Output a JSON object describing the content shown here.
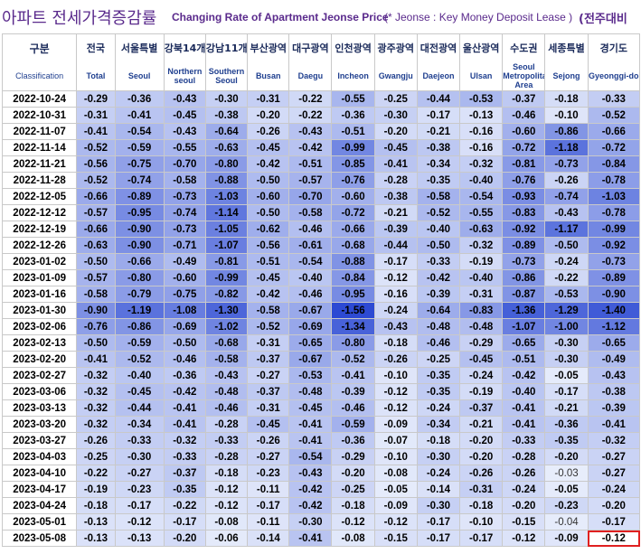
{
  "title": {
    "korean": "아파트 전세가격증감률",
    "english": "Changing Rate of Apartment Jeonse Price",
    "note": "(* Jeonse : Key Money Deposit Lease )",
    "right": "(전주대비"
  },
  "corner": {
    "korean": "구분",
    "english": "Classification"
  },
  "columns": [
    {
      "kor": "전국",
      "eng": "Total"
    },
    {
      "kor": "서울특별",
      "eng": "Seoul"
    },
    {
      "kor": "강북14개",
      "eng": "Northern seoul"
    },
    {
      "kor": "강남11개",
      "eng": "Southern Seoul"
    },
    {
      "kor": "부산광역",
      "eng": "Busan"
    },
    {
      "kor": "대구광역",
      "eng": "Daegu"
    },
    {
      "kor": "인천광역",
      "eng": "Incheon"
    },
    {
      "kor": "광주광역",
      "eng": "Gwangju"
    },
    {
      "kor": "대전광역",
      "eng": "Daejeon"
    },
    {
      "kor": "울산광역",
      "eng": "Ulsan"
    },
    {
      "kor": "수도권",
      "eng": "Seoul Metropolitan Area"
    },
    {
      "kor": "세종특별",
      "eng": "Sejong"
    },
    {
      "kor": "경기도",
      "eng": "Gyeonggi-do"
    }
  ],
  "rows": [
    {
      "date": "2022-10-24",
      "values": [
        "-0.29",
        "-0.36",
        "-0.43",
        "-0.30",
        "-0.31",
        "-0.22",
        "-0.55",
        "-0.25",
        "-0.44",
        "-0.53",
        "-0.37",
        "-0.18",
        "-0.33"
      ]
    },
    {
      "date": "2022-10-31",
      "values": [
        "-0.31",
        "-0.41",
        "-0.45",
        "-0.38",
        "-0.20",
        "-0.22",
        "-0.36",
        "-0.30",
        "-0.17",
        "-0.13",
        "-0.46",
        "-0.10",
        "-0.52"
      ]
    },
    {
      "date": "2022-11-07",
      "values": [
        "-0.41",
        "-0.54",
        "-0.43",
        "-0.64",
        "-0.26",
        "-0.43",
        "-0.51",
        "-0.20",
        "-0.21",
        "-0.16",
        "-0.60",
        "-0.86",
        "-0.66"
      ]
    },
    {
      "date": "2022-11-14",
      "values": [
        "-0.52",
        "-0.59",
        "-0.55",
        "-0.63",
        "-0.45",
        "-0.42",
        "-0.99",
        "-0.45",
        "-0.38",
        "-0.16",
        "-0.72",
        "-1.18",
        "-0.72"
      ]
    },
    {
      "date": "2022-11-21",
      "values": [
        "-0.56",
        "-0.75",
        "-0.70",
        "-0.80",
        "-0.42",
        "-0.51",
        "-0.85",
        "-0.41",
        "-0.34",
        "-0.32",
        "-0.81",
        "-0.73",
        "-0.84"
      ]
    },
    {
      "date": "2022-11-28",
      "values": [
        "-0.52",
        "-0.74",
        "-0.58",
        "-0.88",
        "-0.50",
        "-0.57",
        "-0.76",
        "-0.28",
        "-0.35",
        "-0.40",
        "-0.76",
        "-0.26",
        "-0.78"
      ]
    },
    {
      "date": "2022-12-05",
      "values": [
        "-0.66",
        "-0.89",
        "-0.73",
        "-1.03",
        "-0.60",
        "-0.70",
        "-0.60",
        "-0.38",
        "-0.58",
        "-0.54",
        "-0.93",
        "-0.74",
        "-1.03"
      ]
    },
    {
      "date": "2022-12-12",
      "values": [
        "-0.57",
        "-0.95",
        "-0.74",
        "-1.14",
        "-0.50",
        "-0.58",
        "-0.72",
        "-0.21",
        "-0.52",
        "-0.55",
        "-0.83",
        "-0.43",
        "-0.78"
      ]
    },
    {
      "date": "2022-12-19",
      "values": [
        "-0.66",
        "-0.90",
        "-0.73",
        "-1.05",
        "-0.62",
        "-0.46",
        "-0.66",
        "-0.39",
        "-0.40",
        "-0.63",
        "-0.92",
        "-1.17",
        "-0.99"
      ]
    },
    {
      "date": "2022-12-26",
      "values": [
        "-0.63",
        "-0.90",
        "-0.71",
        "-1.07",
        "-0.56",
        "-0.61",
        "-0.68",
        "-0.44",
        "-0.50",
        "-0.32",
        "-0.89",
        "-0.50",
        "-0.92"
      ]
    },
    {
      "date": "2023-01-02",
      "values": [
        "-0.50",
        "-0.66",
        "-0.49",
        "-0.81",
        "-0.51",
        "-0.54",
        "-0.88",
        "-0.17",
        "-0.33",
        "-0.19",
        "-0.73",
        "-0.24",
        "-0.73"
      ]
    },
    {
      "date": "2023-01-09",
      "values": [
        "-0.57",
        "-0.80",
        "-0.60",
        "-0.99",
        "-0.45",
        "-0.40",
        "-0.84",
        "-0.12",
        "-0.42",
        "-0.40",
        "-0.86",
        "-0.22",
        "-0.89"
      ]
    },
    {
      "date": "2023-01-16",
      "values": [
        "-0.58",
        "-0.79",
        "-0.75",
        "-0.82",
        "-0.42",
        "-0.46",
        "-0.95",
        "-0.16",
        "-0.39",
        "-0.31",
        "-0.87",
        "-0.53",
        "-0.90"
      ]
    },
    {
      "date": "2023-01-30",
      "values": [
        "-0.90",
        "-1.19",
        "-1.08",
        "-1.30",
        "-0.58",
        "-0.67",
        "-1.56",
        "-0.24",
        "-0.64",
        "-0.83",
        "-1.36",
        "-1.29",
        "-1.40"
      ]
    },
    {
      "date": "2023-02-06",
      "values": [
        "-0.76",
        "-0.86",
        "-0.69",
        "-1.02",
        "-0.52",
        "-0.69",
        "-1.34",
        "-0.43",
        "-0.48",
        "-0.48",
        "-1.07",
        "-1.00",
        "-1.12"
      ]
    },
    {
      "date": "2023-02-13",
      "values": [
        "-0.50",
        "-0.59",
        "-0.50",
        "-0.68",
        "-0.31",
        "-0.65",
        "-0.80",
        "-0.18",
        "-0.46",
        "-0.29",
        "-0.65",
        "-0.30",
        "-0.65"
      ]
    },
    {
      "date": "2023-02-20",
      "values": [
        "-0.41",
        "-0.52",
        "-0.46",
        "-0.58",
        "-0.37",
        "-0.67",
        "-0.52",
        "-0.26",
        "-0.25",
        "-0.45",
        "-0.51",
        "-0.30",
        "-0.49"
      ]
    },
    {
      "date": "2023-02-27",
      "values": [
        "-0.32",
        "-0.40",
        "-0.36",
        "-0.43",
        "-0.27",
        "-0.53",
        "-0.41",
        "-0.10",
        "-0.35",
        "-0.24",
        "-0.42",
        "-0.05",
        "-0.43"
      ]
    },
    {
      "date": "2023-03-06",
      "values": [
        "-0.32",
        "-0.45",
        "-0.42",
        "-0.48",
        "-0.37",
        "-0.48",
        "-0.39",
        "-0.12",
        "-0.35",
        "-0.19",
        "-0.40",
        "-0.17",
        "-0.38"
      ]
    },
    {
      "date": "2023-03-13",
      "values": [
        "-0.32",
        "-0.44",
        "-0.41",
        "-0.46",
        "-0.31",
        "-0.45",
        "-0.46",
        "-0.12",
        "-0.24",
        "-0.37",
        "-0.41",
        "-0.21",
        "-0.39"
      ]
    },
    {
      "date": "2023-03-20",
      "values": [
        "-0.32",
        "-0.34",
        "-0.41",
        "-0.28",
        "-0.45",
        "-0.41",
        "-0.59",
        "-0.09",
        "-0.34",
        "-0.21",
        "-0.41",
        "-0.36",
        "-0.41"
      ]
    },
    {
      "date": "2023-03-27",
      "values": [
        "-0.26",
        "-0.33",
        "-0.32",
        "-0.33",
        "-0.26",
        "-0.41",
        "-0.36",
        "-0.07",
        "-0.18",
        "-0.20",
        "-0.33",
        "-0.35",
        "-0.32"
      ]
    },
    {
      "date": "2023-04-03",
      "values": [
        "-0.25",
        "-0.30",
        "-0.33",
        "-0.28",
        "-0.27",
        "-0.54",
        "-0.29",
        "-0.10",
        "-0.30",
        "-0.20",
        "-0.28",
        "-0.20",
        "-0.27"
      ]
    },
    {
      "date": "2023-04-10",
      "values": [
        "-0.22",
        "-0.27",
        "-0.37",
        "-0.18",
        "-0.23",
        "-0.43",
        "-0.20",
        "-0.08",
        "-0.24",
        "-0.26",
        "-0.26",
        "-0.03",
        "-0.27"
      ]
    },
    {
      "date": "2023-04-17",
      "values": [
        "-0.19",
        "-0.23",
        "-0.35",
        "-0.12",
        "-0.11",
        "-0.42",
        "-0.25",
        "-0.05",
        "-0.14",
        "-0.31",
        "-0.24",
        "-0.05",
        "-0.24"
      ]
    },
    {
      "date": "2023-04-24",
      "values": [
        "-0.18",
        "-0.17",
        "-0.22",
        "-0.12",
        "-0.17",
        "-0.42",
        "-0.18",
        "-0.09",
        "-0.30",
        "-0.18",
        "-0.20",
        "-0.23",
        "-0.20"
      ]
    },
    {
      "date": "2023-05-01",
      "values": [
        "-0.13",
        "-0.12",
        "-0.17",
        "-0.08",
        "-0.11",
        "-0.30",
        "-0.12",
        "-0.12",
        "-0.17",
        "-0.10",
        "-0.15",
        "-0.04",
        "-0.17"
      ]
    },
    {
      "date": "2023-05-08",
      "values": [
        "-0.13",
        "-0.13",
        "-0.20",
        "-0.06",
        "-0.14",
        "-0.41",
        "-0.08",
        "-0.15",
        "-0.17",
        "-0.17",
        "-0.12",
        "-0.09",
        "-0.12"
      ]
    }
  ],
  "highlight": {
    "row": 27,
    "col": 12,
    "color": "#e02020"
  }
}
